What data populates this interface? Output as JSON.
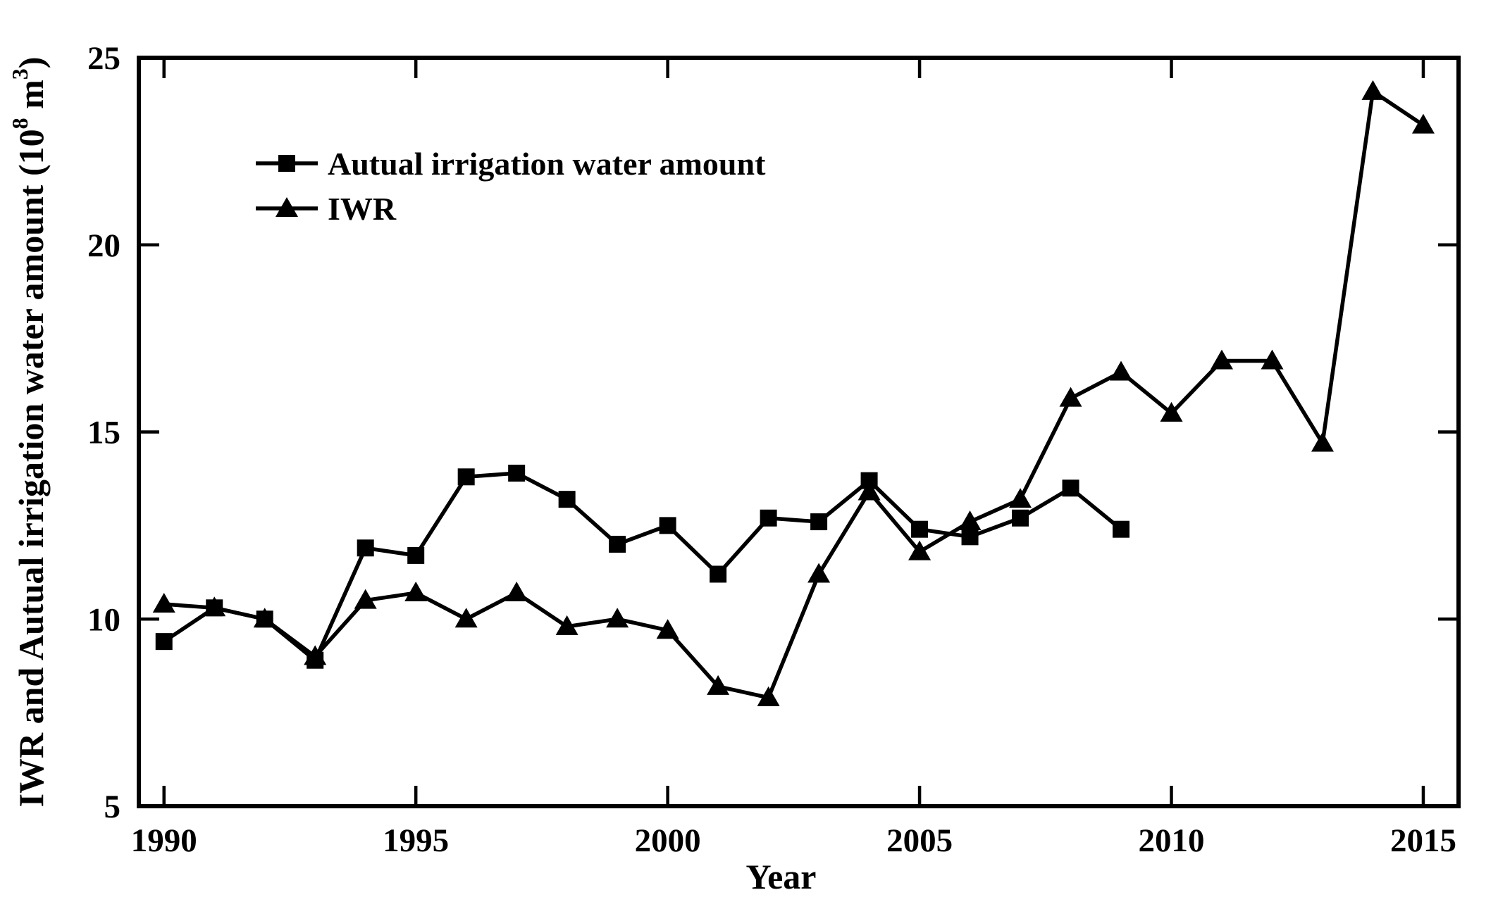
{
  "figure": {
    "background": "#ffffff",
    "ink_color": "#000000"
  },
  "chart_data": {
    "type": "line",
    "title": "",
    "xlabel": "Year",
    "ylabel": "IWR and Autual irrigation water amount (10⁸ m³)",
    "ylabel_parts": [
      {
        "text": "IWR and Autual irrigation water amount (10"
      },
      {
        "text": "8",
        "sup": true
      },
      {
        "text": " m"
      },
      {
        "text": "3",
        "sup": true
      },
      {
        "text": ")"
      }
    ],
    "xlim": [
      1989.5,
      2015.7
    ],
    "ylim": [
      5,
      25
    ],
    "xticks": [
      1990,
      1995,
      2000,
      2005,
      2010,
      2015
    ],
    "yticks": [
      5,
      10,
      15,
      20,
      25
    ],
    "grid": false,
    "legend_position": "upper-left-inside",
    "legend_entries": [
      "Autual irrigation water amount",
      "IWR"
    ],
    "series": [
      {
        "name": "Autual irrigation water amount",
        "marker": "square",
        "color": "#000000",
        "x": [
          1990,
          1991,
          1992,
          1993,
          1994,
          1995,
          1996,
          1997,
          1998,
          1999,
          2000,
          2001,
          2002,
          2003,
          2004,
          2005,
          2006,
          2007,
          2008,
          2009
        ],
        "y": [
          9.4,
          10.3,
          10.0,
          8.9,
          11.9,
          11.7,
          13.8,
          13.9,
          13.2,
          12.0,
          12.5,
          11.2,
          12.7,
          12.6,
          13.7,
          12.4,
          12.2,
          12.7,
          13.5,
          12.4
        ]
      },
      {
        "name": "IWR",
        "marker": "triangle",
        "color": "#000000",
        "x": [
          1990,
          1991,
          1992,
          1993,
          1994,
          1995,
          1996,
          1997,
          1998,
          1999,
          2000,
          2001,
          2002,
          2003,
          2004,
          2005,
          2006,
          2007,
          2008,
          2009,
          2010,
          2011,
          2012,
          2013,
          2014,
          2015
        ],
        "y": [
          10.4,
          10.3,
          10.0,
          9.0,
          10.5,
          10.7,
          10.0,
          10.7,
          9.8,
          10.0,
          9.7,
          8.2,
          7.9,
          11.2,
          13.4,
          11.8,
          12.6,
          13.2,
          15.9,
          16.6,
          15.5,
          16.9,
          16.9,
          14.7,
          24.1,
          23.2
        ]
      }
    ]
  }
}
